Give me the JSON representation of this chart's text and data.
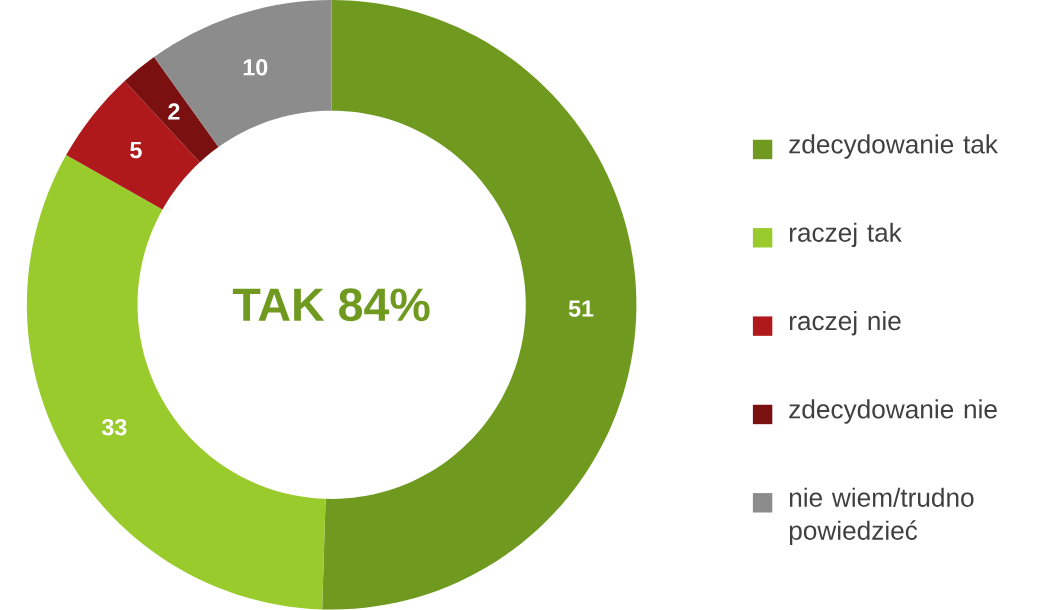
{
  "chart_data": {
    "type": "donut",
    "categories": [
      "zdecydowanie tak",
      "raczej tak",
      "raczej nie",
      "zdecydowanie nie",
      "nie wiem/trudno powiedzieć"
    ],
    "values": [
      51,
      33,
      5,
      2,
      10
    ],
    "colors": [
      "#6f9a1f",
      "#9acb2c",
      "#b0191b",
      "#7a1010",
      "#8c8c8c"
    ],
    "data_labels": true,
    "legend": "right",
    "annotations": [
      "TAK 84%"
    ]
  }
}
